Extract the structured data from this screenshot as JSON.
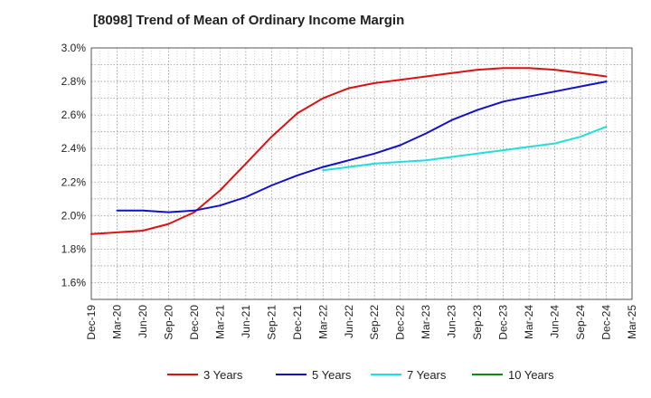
{
  "chart_data": {
    "type": "line",
    "title": "[8098]  Trend of Mean of Ordinary Income Margin",
    "xlabel": "",
    "ylabel": "",
    "x_ticks": [
      "Dec-19",
      "Mar-20",
      "Jun-20",
      "Sep-20",
      "Dec-20",
      "Mar-21",
      "Jun-21",
      "Sep-21",
      "Dec-21",
      "Mar-22",
      "Jun-22",
      "Sep-22",
      "Dec-22",
      "Mar-23",
      "Jun-23",
      "Sep-23",
      "Dec-23",
      "Mar-24",
      "Jun-24",
      "Sep-24",
      "Dec-24",
      "Mar-25"
    ],
    "y_ticks": [
      "1.6%",
      "1.8%",
      "2.0%",
      "2.2%",
      "2.4%",
      "2.6%",
      "2.8%",
      "3.0%"
    ],
    "ylim": [
      1.5,
      3.0
    ],
    "grid": true,
    "legend_position": "bottom",
    "series": [
      {
        "name": "3 Years",
        "color": "#dd1111",
        "x": [
          "Dec-19",
          "Mar-20",
          "Jun-20",
          "Sep-20",
          "Dec-20",
          "Mar-21",
          "Jun-21",
          "Sep-21",
          "Dec-21",
          "Mar-22",
          "Jun-22",
          "Sep-22",
          "Dec-22",
          "Mar-23",
          "Jun-23",
          "Sep-23",
          "Dec-23",
          "Mar-24",
          "Jun-24",
          "Sep-24",
          "Dec-24"
        ],
        "values": [
          1.89,
          1.9,
          1.91,
          1.95,
          2.02,
          2.15,
          2.31,
          2.47,
          2.61,
          2.7,
          2.76,
          2.79,
          2.81,
          2.83,
          2.85,
          2.87,
          2.88,
          2.88,
          2.87,
          2.85,
          2.83
        ]
      },
      {
        "name": "5 Years",
        "color": "#1111cc",
        "x": [
          "Mar-20",
          "Jun-20",
          "Sep-20",
          "Dec-20",
          "Mar-21",
          "Jun-21",
          "Sep-21",
          "Dec-21",
          "Mar-22",
          "Jun-22",
          "Sep-22",
          "Dec-22",
          "Mar-23",
          "Jun-23",
          "Sep-23",
          "Dec-23",
          "Mar-24",
          "Jun-24",
          "Sep-24",
          "Dec-24"
        ],
        "values": [
          2.03,
          2.03,
          2.02,
          2.03,
          2.06,
          2.11,
          2.18,
          2.24,
          2.29,
          2.33,
          2.37,
          2.42,
          2.49,
          2.57,
          2.63,
          2.68,
          2.71,
          2.74,
          2.77,
          2.8
        ]
      },
      {
        "name": "7 Years",
        "color": "#22dddd",
        "x": [
          "Mar-22",
          "Jun-22",
          "Sep-22",
          "Dec-22",
          "Mar-23",
          "Jun-23",
          "Sep-23",
          "Dec-23",
          "Mar-24",
          "Jun-24",
          "Sep-24",
          "Dec-24"
        ],
        "values": [
          2.27,
          2.29,
          2.31,
          2.32,
          2.33,
          2.35,
          2.37,
          2.39,
          2.41,
          2.43,
          2.47,
          2.53
        ]
      },
      {
        "name": "10 Years",
        "color": "#118811",
        "x": [],
        "values": []
      }
    ]
  }
}
